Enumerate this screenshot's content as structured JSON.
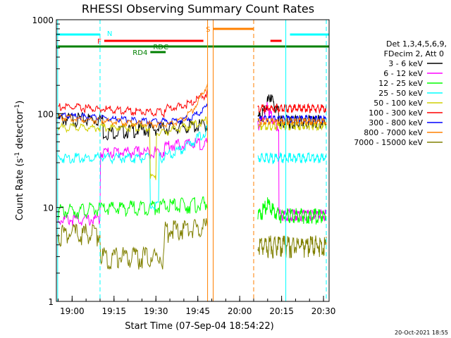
{
  "chart_data": {
    "type": "line",
    "title": "RHESSI Observing Summary Count Rates",
    "xlabel": "Start Time (07-Sep-04 18:54:22)",
    "ylabel": "Count Rate (s⁻¹ detector⁻¹)",
    "ylabel_parts": [
      "Count Rate (s",
      "-1",
      " detector",
      "-1",
      ")"
    ],
    "yscale": "log",
    "ylim": [
      1,
      1000
    ],
    "xlim": [
      "18:54:22",
      "20:32:00"
    ],
    "y_ticks": [
      "1",
      "10",
      "100",
      "1000"
    ],
    "x_ticks": [
      "19:00",
      "19:15",
      "19:30",
      "19:45",
      "20:00",
      "20:15",
      "20:30"
    ],
    "timestamp": "20-Oct-2021 18:55",
    "legend_header": [
      "Det 1,3,4,5,6,9,",
      "FDecim 2, Att 0"
    ],
    "legend_position": "right",
    "series": [
      {
        "name": "3 - 6 keV",
        "color": "#000000"
      },
      {
        "name": "6 - 12 keV",
        "color": "#ff00ff"
      },
      {
        "name": "12 - 25 keV",
        "color": "#00ff00"
      },
      {
        "name": "25 - 50 keV",
        "color": "#00ffff"
      },
      {
        "name": "50 - 100 keV",
        "color": "#d0d000"
      },
      {
        "name": "100 - 300 keV",
        "color": "#ff0000"
      },
      {
        "name": "300 - 800 keV",
        "color": "#0000ff"
      },
      {
        "name": "800 - 7000 keV",
        "color": "#ff8000"
      },
      {
        "name": "7000 - 15000 keV",
        "color": "#808000"
      }
    ],
    "flag_bars": [
      {
        "label": "N",
        "color": "#00ffff",
        "segments": [
          [
            "18:54:22",
            "19:10:00"
          ],
          [
            "20:18:00",
            "20:32:00"
          ]
        ]
      },
      {
        "label": "S",
        "color": "#ff8000",
        "segments": [
          [
            "19:50:30",
            "20:05:00"
          ]
        ]
      },
      {
        "label": "F",
        "color": "#ff0000",
        "segments": [
          [
            "19:11:30",
            "19:47:00"
          ],
          [
            "20:11:00",
            "20:15:00"
          ]
        ]
      },
      {
        "label": "RDC",
        "color": "#008000",
        "segments": [
          [
            "18:54:22",
            "20:32:00"
          ]
        ]
      },
      {
        "label": "RD4",
        "color": "#008000",
        "segments": [
          [
            "19:28:00",
            "19:33:30"
          ]
        ]
      }
    ],
    "vertical_markers": [
      {
        "time": "18:54:50",
        "color": "#00ffff",
        "style": "solid"
      },
      {
        "time": "19:10:00",
        "color": "#00ffff",
        "style": "dashed"
      },
      {
        "time": "19:48:30",
        "color": "#ff8000",
        "style": "solid"
      },
      {
        "time": "19:50:30",
        "color": "#ff8000",
        "style": "solid"
      },
      {
        "time": "20:05:00",
        "color": "#ff8000",
        "style": "dashed"
      },
      {
        "time": "20:16:30",
        "color": "#00ffff",
        "style": "solid"
      },
      {
        "time": "20:31:00",
        "color": "#00ffff",
        "style": "dashed"
      }
    ]
  }
}
